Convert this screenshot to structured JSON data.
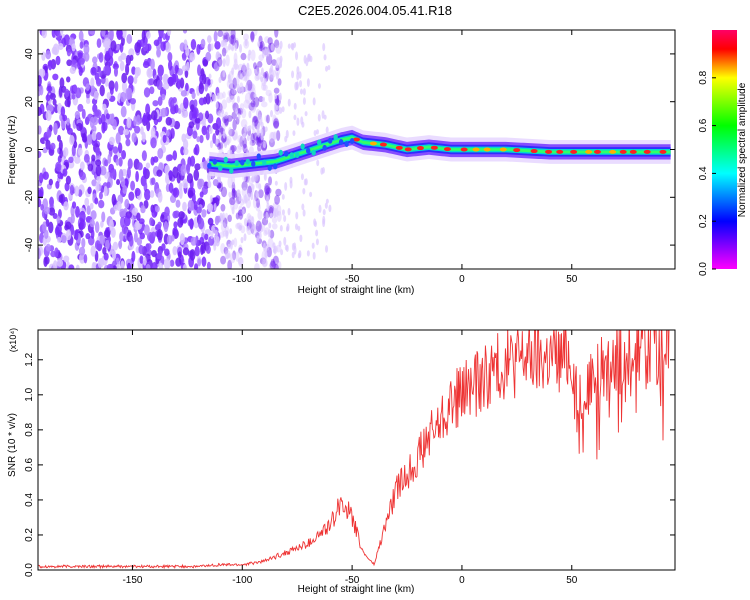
{
  "figure": {
    "title": "C2E5.2026.004.05.41.R18"
  },
  "chart_data": [
    {
      "type": "heatmap",
      "xlabel": "Height of straight line (km)",
      "ylabel": "Frequency (Hz)",
      "xlim": [
        -193,
        97
      ],
      "ylim": [
        -50,
        50
      ],
      "x_ticks": [
        -150,
        -100,
        -50,
        0,
        50
      ],
      "y_ticks": [
        -40,
        -20,
        0,
        20,
        40
      ],
      "colorbar": {
        "label": "Normalized spectral amplitude",
        "range": [
          0,
          1
        ],
        "ticks": [
          "0.0",
          "0.2",
          "0.4",
          "0.6",
          "0.8"
        ],
        "colors": [
          "#ff00ff",
          "#0000ff",
          "#00ffff",
          "#00ff00",
          "#ffff00",
          "#ff0000"
        ]
      },
      "ridge": {
        "x": [
          -115,
          -105,
          -95,
          -85,
          -75,
          -65,
          -55,
          -50,
          -45,
          -35,
          -25,
          -15,
          -5,
          5,
          20,
          40,
          60,
          80,
          95
        ],
        "y": [
          -6,
          -7,
          -6,
          -5,
          -2,
          1,
          4,
          5,
          3,
          2,
          0,
          1,
          0,
          0,
          0,
          -1,
          -1,
          -1,
          -1
        ]
      },
      "grid": false
    },
    {
      "type": "line",
      "xlabel": "Height of straight line (km)",
      "ylabel": "SNR (10 * v/v)",
      "multiplier": "(x10⁴)",
      "xlim": [
        -193,
        97
      ],
      "ylim": [
        0,
        1.37
      ],
      "x_ticks": [
        -150,
        -100,
        -50,
        0,
        50
      ],
      "y_ticks": [
        "0.0",
        "0.2",
        "0.4",
        "0.6",
        "0.8",
        "1.0",
        "1.2"
      ],
      "series": [
        {
          "color": "#ee3333",
          "x": [
            -193,
            -180,
            -160,
            -140,
            -120,
            -110,
            -100,
            -90,
            -80,
            -70,
            -60,
            -55,
            -50,
            -45,
            -40,
            -35,
            -30,
            -25,
            -20,
            -15,
            -10,
            -5,
            0,
            5,
            10,
            15,
            20,
            25,
            30,
            35,
            40,
            45,
            50,
            55,
            60,
            65,
            70,
            75,
            80,
            85,
            90,
            95
          ],
          "y": [
            0.02,
            0.02,
            0.02,
            0.02,
            0.02,
            0.03,
            0.03,
            0.05,
            0.1,
            0.15,
            0.25,
            0.4,
            0.3,
            0.1,
            0.03,
            0.25,
            0.45,
            0.55,
            0.65,
            0.75,
            0.85,
            0.95,
            1.0,
            1.05,
            1.1,
            1.15,
            1.18,
            1.2,
            1.22,
            1.2,
            1.22,
            1.2,
            1.25,
            0.95,
            1.1,
            1.15,
            1.2,
            1.25,
            1.28,
            1.3,
            1.28,
            1.32
          ]
        }
      ],
      "grid": false
    }
  ]
}
